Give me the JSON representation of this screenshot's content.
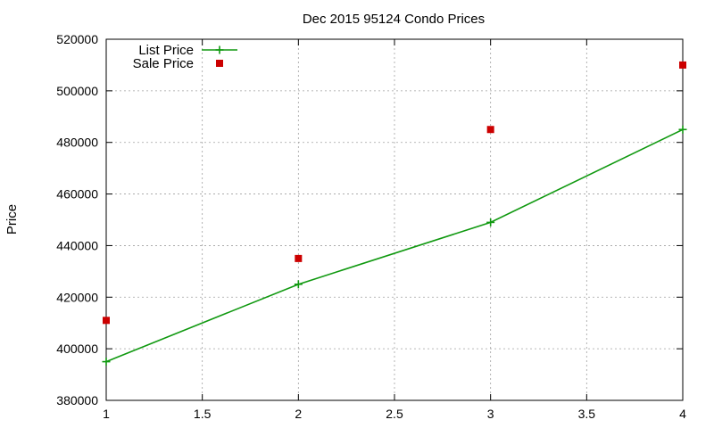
{
  "chart_data": {
    "type": "line",
    "title": "Dec 2015 95124 Condo Prices",
    "xlabel": "",
    "ylabel": "Price",
    "xlim": [
      1,
      4
    ],
    "ylim": [
      380000,
      520000
    ],
    "x_ticks": [
      1,
      1.5,
      2,
      2.5,
      3,
      3.5,
      4
    ],
    "x_tick_labels": [
      "1",
      "1.5",
      "2",
      "2.5",
      "3",
      "3.5",
      "4"
    ],
    "y_ticks": [
      380000,
      400000,
      420000,
      440000,
      460000,
      480000,
      500000,
      520000
    ],
    "y_tick_labels": [
      "380000",
      "400000",
      "420000",
      "440000",
      "460000",
      "480000",
      "500000",
      "520000"
    ],
    "grid": true,
    "legend_position": "top-left",
    "series": [
      {
        "name": "List Price",
        "style": "linespoints",
        "marker": "plus",
        "color": "#109910",
        "x": [
          1,
          2,
          3,
          4
        ],
        "y": [
          395000,
          425000,
          449000,
          485000
        ]
      },
      {
        "name": "Sale Price",
        "style": "points",
        "marker": "square",
        "color": "#cc0000",
        "x": [
          1,
          2,
          3,
          4
        ],
        "y": [
          411000,
          435000,
          485000,
          510000
        ]
      }
    ]
  }
}
